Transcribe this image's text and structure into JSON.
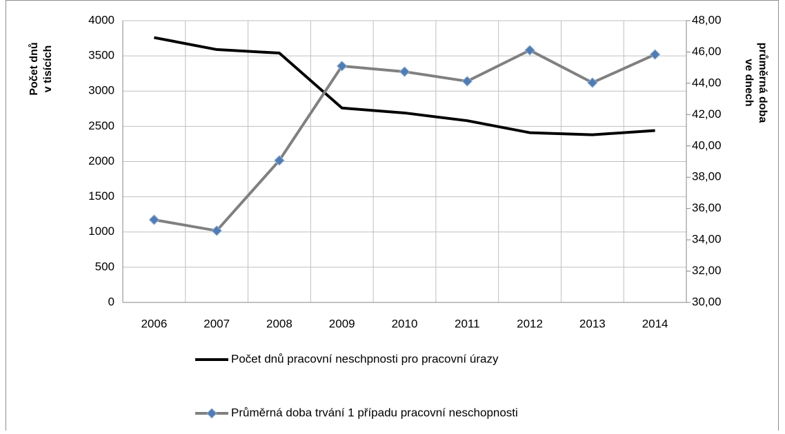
{
  "chart_data": {
    "type": "line",
    "categories": [
      "2006",
      "2007",
      "2008",
      "2009",
      "2010",
      "2011",
      "2012",
      "2013",
      "2014"
    ],
    "series": [
      {
        "name": "Počet dnů pracovní neschpnosti pro pracovní úrazy",
        "color": "#000000",
        "axis": "y",
        "values": [
          3760,
          3590,
          3540,
          2760,
          2690,
          2580,
          2410,
          2380,
          2440
        ]
      },
      {
        "name": "Průměrná doba trvání 1 případu pracovní neschopnosti",
        "color": "#808080",
        "marker_color": "#4a7ebb",
        "axis": "y2",
        "values": [
          35.28,
          34.58,
          39.07,
          45.1,
          44.74,
          44.13,
          46.11,
          44.04,
          45.84
        ]
      }
    ],
    "y_label": [
      "Počet dnů",
      "v tisících"
    ],
    "y2_label": [
      "průměrná doba",
      "ve dnech"
    ],
    "ylim": [
      0,
      4000
    ],
    "yticks": [
      0,
      500,
      1000,
      1500,
      2000,
      2500,
      3000,
      3500,
      4000
    ],
    "y2lim": [
      30,
      48
    ],
    "y2ticks": [
      {
        "value": 30,
        "label": "30,00"
      },
      {
        "value": 32,
        "label": "32,00"
      },
      {
        "value": 34,
        "label": "34,00"
      },
      {
        "value": 36,
        "label": "36,00"
      },
      {
        "value": 38,
        "label": "38,00"
      },
      {
        "value": 40,
        "label": "40,00"
      },
      {
        "value": 42,
        "label": "42,00"
      },
      {
        "value": 44,
        "label": "44,00"
      },
      {
        "value": 46,
        "label": "46,00"
      },
      {
        "value": 48,
        "label": "48,00"
      }
    ],
    "grid": true,
    "legend": "bottom"
  }
}
